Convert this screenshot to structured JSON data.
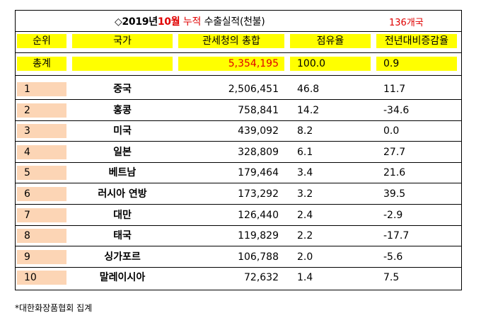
{
  "title": {
    "symbol": "◇",
    "year": "2019년",
    "month": "10월",
    "cumulative": "누적",
    "subject": "수출실적(천불)",
    "country_count": "136개국"
  },
  "headers": [
    "순위",
    "국가",
    "관세청의 총합",
    "점유율",
    "전년대비증감율"
  ],
  "total": {
    "label": "총계",
    "country": "",
    "amount": "5,354,195",
    "share": "100.0",
    "change": "0.9"
  },
  "rows": [
    {
      "rank": "1",
      "country": "중국",
      "amount": "2,506,451",
      "share": "46.8",
      "change": "11.7"
    },
    {
      "rank": "2",
      "country": "홍콩",
      "amount": "758,841",
      "share": "14.2",
      "change": "-34.6"
    },
    {
      "rank": "3",
      "country": "미국",
      "amount": "439,092",
      "share": "8.2",
      "change": "0.0"
    },
    {
      "rank": "4",
      "country": "일본",
      "amount": "328,809",
      "share": "6.1",
      "change": "27.7"
    },
    {
      "rank": "5",
      "country": "베트남",
      "amount": "179,464",
      "share": "3.4",
      "change": "21.6"
    },
    {
      "rank": "6",
      "country": "러시아 연방",
      "amount": "173,292",
      "share": "3.2",
      "change": "39.5"
    },
    {
      "rank": "7",
      "country": "대만",
      "amount": "126,440",
      "share": "2.4",
      "change": "-2.9"
    },
    {
      "rank": "8",
      "country": "태국",
      "amount": "119,829",
      "share": "2.2",
      "change": "-17.7"
    },
    {
      "rank": "9",
      "country": "싱가포르",
      "amount": "106,788",
      "share": "2.0",
      "change": "-5.6"
    },
    {
      "rank": "10",
      "country": "말레이시아",
      "amount": "72,632",
      "share": "1.4",
      "change": "7.5"
    }
  ],
  "footer": "*대한화장품협회 집계",
  "colors": {
    "header_fill": "#ffff00",
    "rank_fill": "#fcd5b5",
    "accent_red": "#e00000"
  }
}
